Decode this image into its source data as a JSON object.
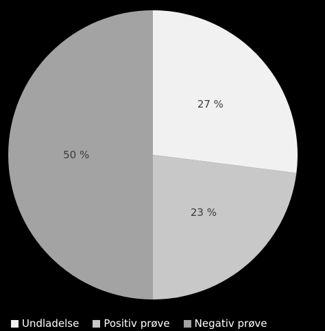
{
  "chart_data": {
    "type": "pie",
    "title": "",
    "categories": [
      "Undladelse",
      "Positiv prøve",
      "Negativ prøve"
    ],
    "values": [
      27,
      23,
      50
    ],
    "labels": [
      "27 %",
      "23 %",
      "50 %"
    ],
    "colors": [
      "#f1f1f1",
      "#c9c8c9",
      "#a3a3a3"
    ],
    "start_angle": "12 o'clock",
    "direction": "clockwise",
    "legend_position": "bottom",
    "background": "#000000"
  }
}
